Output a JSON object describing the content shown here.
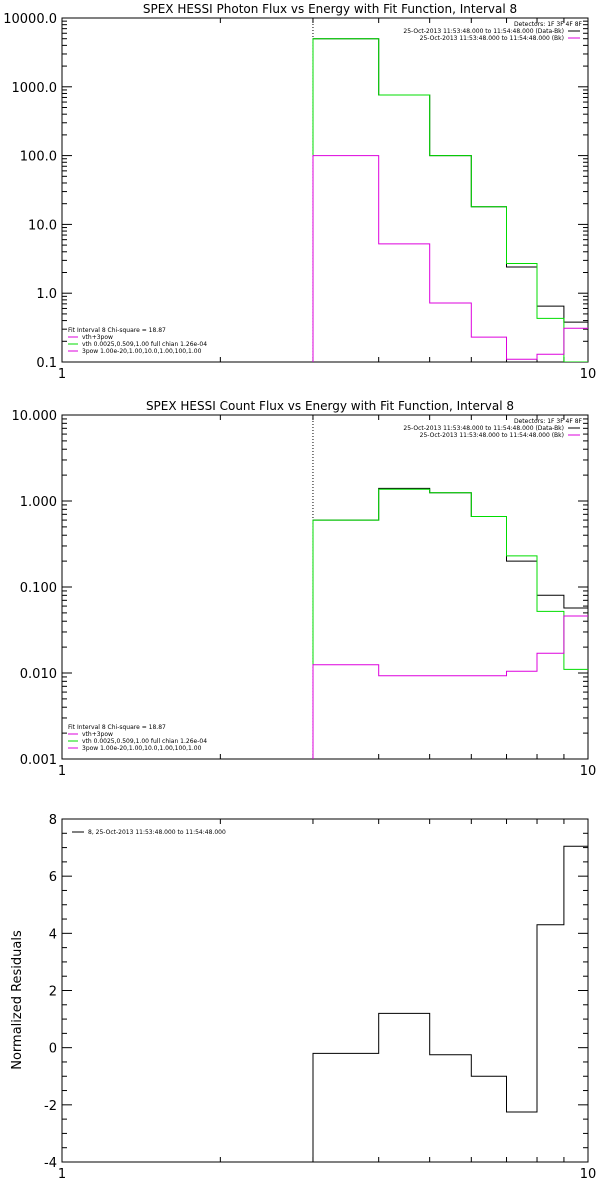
{
  "colors": {
    "data": "#000000",
    "model": "#00dd00",
    "component": "#dd00dd",
    "axis": "#000000"
  },
  "chart_data": [
    {
      "type": "line",
      "title": "SPEX HESSI Photon Flux vs Energy with Fit Function, Interval 8",
      "xlabel": "",
      "ylabel": "",
      "xscale": "log",
      "yscale": "log",
      "xlim": [
        1,
        10
      ],
      "ylim": [
        0.1,
        10000
      ],
      "x_ticks": [
        1,
        10
      ],
      "x_tick_labels": [
        "1",
        "10"
      ],
      "y_ticks": [
        0.1,
        1,
        10,
        100,
        1000,
        10000
      ],
      "y_tick_labels": [
        "0.1",
        "1.0",
        "10.0",
        "100.0",
        "1000.0",
        "10000.0"
      ],
      "vline_x": 3,
      "legend_top": [
        "Detectors: 1F 3F 4F 8F",
        "25-Oct-2013 11:53:48.000 to 11:54:48.000 (Data-Bk)",
        "25-Oct-2013 11:53:48.000 to 11:54:48.000 (Bk)"
      ],
      "legend_bottom": [
        "Fit Interval 8   Chi-square = 18.87",
        "vth+3pow",
        "vth 0.0025,0.509,1.00  full chian 1.26e-04",
        "3pow 1.00e-20,1.00,10.0,1.00,100,1.00"
      ],
      "series": [
        {
          "name": "25-Oct-2013 11:53:48.000 to 11:54:48.000 (Data-Bk)",
          "edges": [
            3,
            4,
            5,
            6,
            7,
            8,
            9,
            10
          ],
          "values": [
            5000,
            760,
            100,
            18,
            2.4,
            0.65,
            0.38
          ]
        },
        {
          "name": "vth+3pow",
          "edges": [
            3,
            4,
            5,
            6,
            7,
            8,
            9,
            10
          ],
          "values": [
            5000,
            760,
            100,
            18,
            2.7,
            0.43,
            0.1
          ]
        },
        {
          "name": "25-Oct-2013 11:53:48.000 to 11:54:48.000 (Bk)",
          "edges": [
            3,
            4,
            5,
            6,
            7,
            8,
            9,
            10
          ],
          "values": [
            100,
            5.2,
            0.72,
            0.23,
            0.11,
            0.13,
            0.31
          ]
        }
      ]
    },
    {
      "type": "line",
      "title": "SPEX HESSI Count Flux vs Energy with Fit Function, Interval 8",
      "xlabel": "",
      "ylabel": "",
      "xscale": "log",
      "yscale": "log",
      "xlim": [
        1,
        10
      ],
      "ylim": [
        0.001,
        10
      ],
      "x_ticks": [
        1,
        10
      ],
      "x_tick_labels": [
        "1",
        "10"
      ],
      "y_ticks": [
        0.001,
        0.01,
        0.1,
        1,
        10
      ],
      "y_tick_labels": [
        "0.001",
        "0.010",
        "0.100",
        "1.000",
        "10.000"
      ],
      "vline_x": 3,
      "legend_top": [
        "Detectors: 1F 3F 4F 8F",
        "25-Oct-2013 11:53:48.000 to 11:54:48.000 (Data-Bk)",
        "25-Oct-2013 11:53:48.000 to 11:54:48.000 (Bk)"
      ],
      "legend_bottom": [
        "Fit Interval 8   Chi-square = 18.87",
        "vth+3pow",
        "vth 0.0025,0.509,1.00  full chian 1.26e-04",
        "3pow 1.00e-20,1.00,10.0,1.00,100,1.00"
      ],
      "series": [
        {
          "name": "25-Oct-2013 11:53:48.000 to 11:54:48.000 (Data-Bk)",
          "edges": [
            3,
            4,
            5,
            6,
            7,
            8,
            9,
            10
          ],
          "values": [
            0.6,
            1.4,
            1.25,
            0.66,
            0.2,
            0.08,
            0.057
          ]
        },
        {
          "name": "vth+3pow",
          "edges": [
            3,
            4,
            5,
            6,
            7,
            8,
            9,
            10
          ],
          "values": [
            0.6,
            1.37,
            1.25,
            0.66,
            0.23,
            0.052,
            0.011
          ]
        },
        {
          "name": "25-Oct-2013 11:53:48.000 to 11:54:48.000 (Bk)",
          "edges": [
            3,
            4,
            5,
            6,
            7,
            8,
            9,
            10
          ],
          "values": [
            0.0125,
            0.0093,
            0.0093,
            0.0093,
            0.0105,
            0.017,
            0.046
          ]
        }
      ]
    },
    {
      "type": "line",
      "title": "",
      "xlabel": "",
      "ylabel": "Normalized Residuals",
      "xscale": "log",
      "yscale": "linear",
      "xlim": [
        1,
        10
      ],
      "ylim": [
        -4,
        8
      ],
      "x_ticks": [
        1,
        10
      ],
      "x_tick_labels": [
        "1",
        "10"
      ],
      "y_ticks": [
        -4,
        -2,
        0,
        2,
        4,
        6,
        8
      ],
      "y_tick_labels": [
        "-4",
        "-2",
        "0",
        "2",
        "4",
        "6",
        "8"
      ],
      "legend_top": [
        "8, 25-Oct-2013 11:53:48.000 to 11:54:48.000"
      ],
      "series": [
        {
          "name": "8, 25-Oct-2013 11:53:48.000 to 11:54:48.000",
          "edges": [
            3,
            4,
            5,
            6,
            7,
            8,
            9,
            10
          ],
          "values": [
            -0.2,
            1.2,
            -0.25,
            -1.0,
            -2.25,
            4.3,
            7.05
          ]
        }
      ]
    }
  ]
}
